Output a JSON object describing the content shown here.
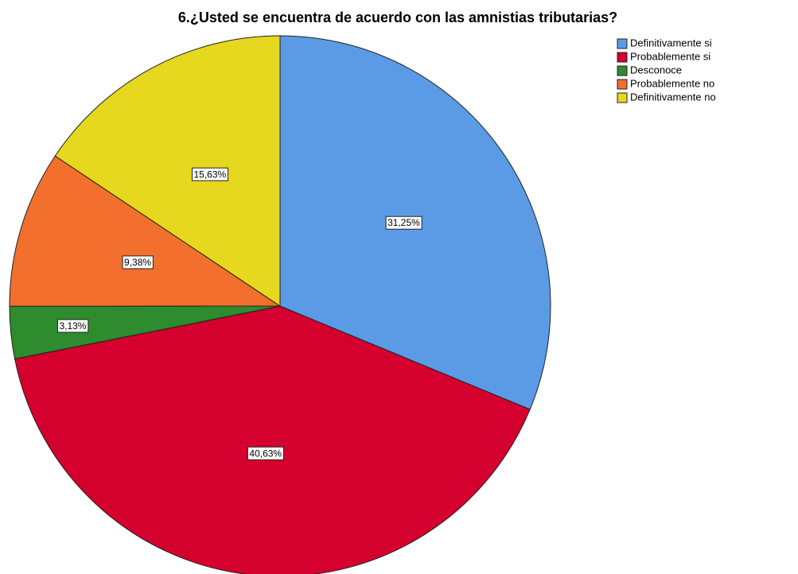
{
  "chart_data": {
    "type": "pie",
    "title": "6.¿Usted se encuentra de acuerdo con las amnistias tributarias?",
    "categories": [
      "Definitivamente si",
      "Probablemente si",
      "Desconoce",
      "Probablemente no",
      "Definitivamente no"
    ],
    "values": [
      31.25,
      40.63,
      3.13,
      9.38,
      15.63
    ],
    "value_labels": [
      "31,25%",
      "40,63%",
      "3,13%",
      "9,38%",
      "15,63%"
    ],
    "colors": [
      "#5b9be6",
      "#d4002e",
      "#2e8b2e",
      "#f26f2e",
      "#e5d81f"
    ]
  }
}
